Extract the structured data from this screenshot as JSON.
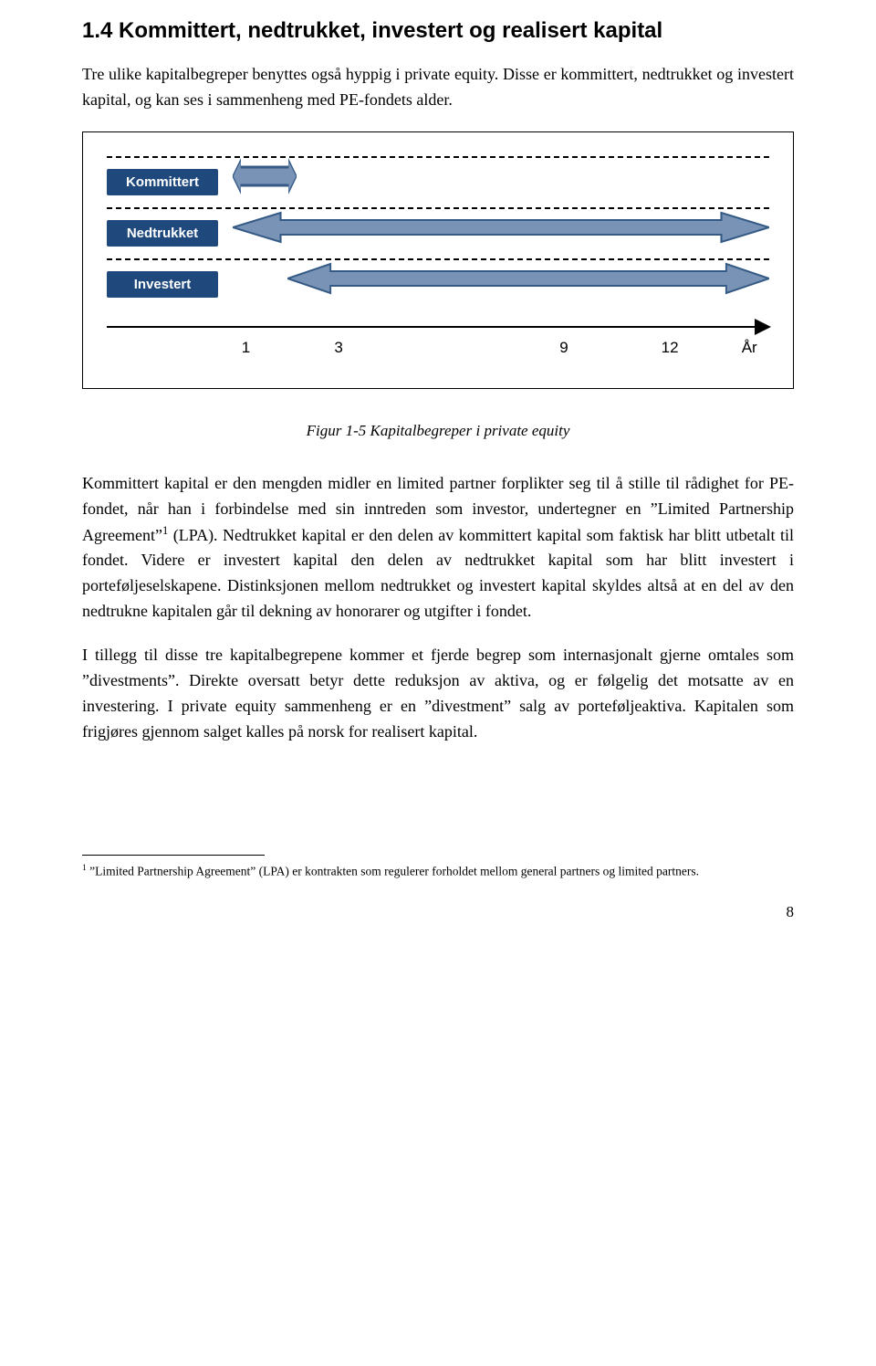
{
  "section": {
    "title": "1.4  Kommittert, nedtrukket, investert og realisert kapital",
    "intro": "Tre ulike kapitalbegreper benyttes også hyppig i private equity. Disse er kommittert, nedtrukket og investert kapital, og kan ses i sammenheng med PE-fondets alder."
  },
  "figure": {
    "labels": {
      "kommittert": "Kommittert",
      "nedtrukket": "Nedtrukket",
      "investert": "Investert"
    },
    "arrow_fill": "#7893b5",
    "arrow_stroke": "#355a86",
    "pill_bg": "#1f497d",
    "axis": {
      "ticks": [
        {
          "label": "1",
          "pct": 21
        },
        {
          "label": "3",
          "pct": 35
        },
        {
          "label": "9",
          "pct": 69
        },
        {
          "label": "12",
          "pct": 85
        },
        {
          "label": "År",
          "pct": 97
        }
      ]
    },
    "caption": "Figur 1-5 Kapitalbegreper i private equity"
  },
  "body": {
    "p1a": "Kommittert kapital er den mengden midler en limited partner forplikter seg til å stille til rådighet for PE-fondet, når han i forbindelse med sin inntreden som investor, undertegner en ”Limited Partnership Agreement”",
    "p1sup": "1",
    "p1b": " (LPA). Nedtrukket kapital er den delen av kommittert kapital som faktisk har blitt utbetalt til fondet. Videre er investert kapital den delen av nedtrukket kapital som har blitt investert i porteføljeselskapene. Distinksjonen mellom nedtrukket og investert kapital skyldes altså at en del av den nedtrukne kapitalen går til dekning av honorarer og utgifter i fondet.",
    "p2": "I tillegg til disse tre kapitalbegrepene kommer et fjerde begrep som internasjonalt gjerne omtales som ”divestments”. Direkte oversatt betyr dette reduksjon av aktiva, og er følgelig det motsatte av en investering. I private equity sammenheng er en ”divestment” salg av porteføljeaktiva. Kapitalen som frigjøres gjennom salget kalles på norsk for realisert kapital."
  },
  "footnote": {
    "num": "1",
    "text": " ”Limited Partnership Agreement” (LPA) er kontrakten som regulerer forholdet mellom general partners og limited partners."
  },
  "pagenum": "8"
}
